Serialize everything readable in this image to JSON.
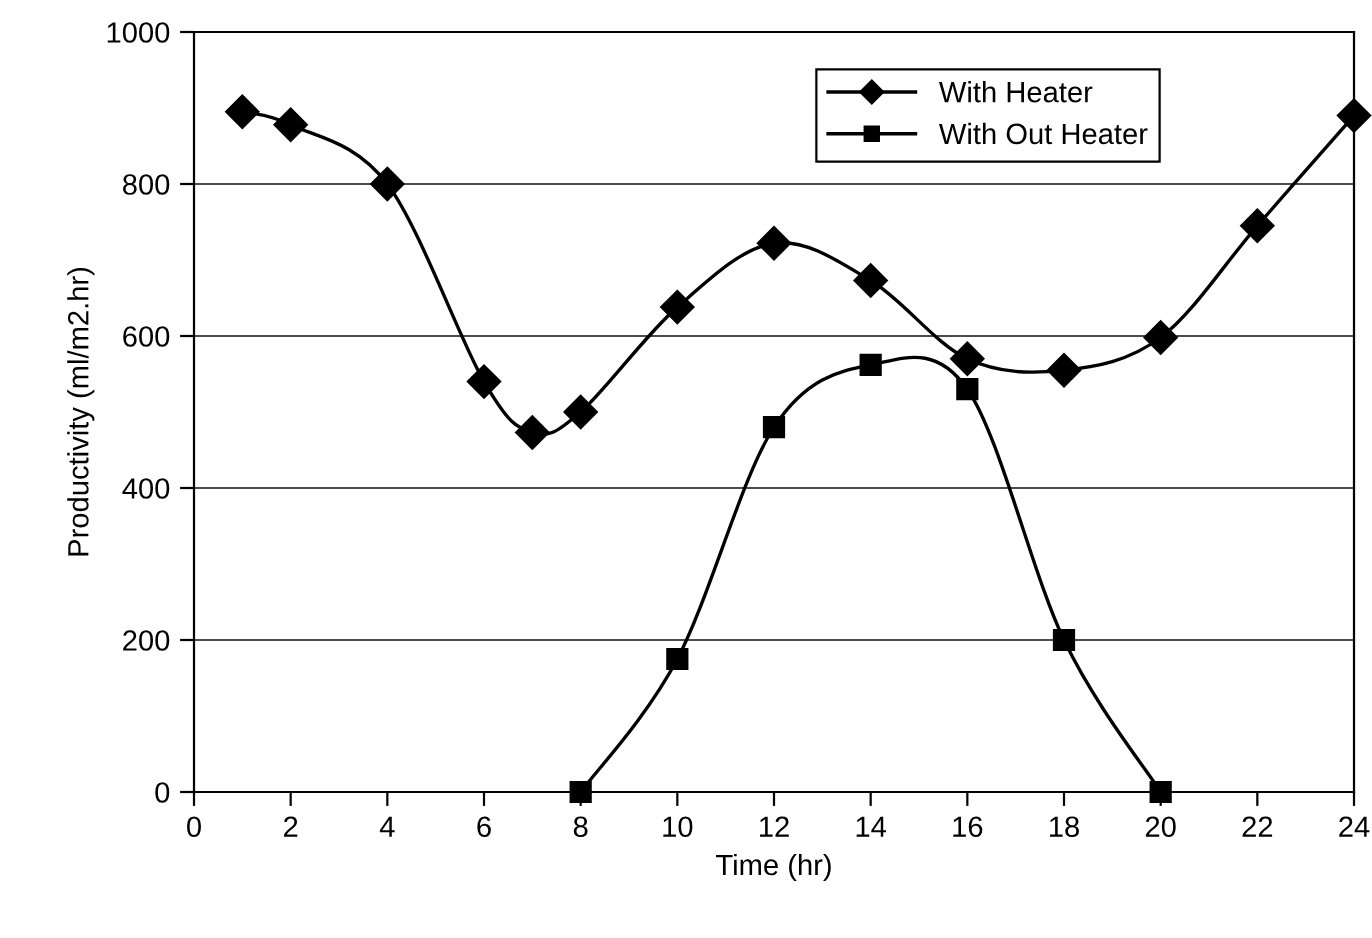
{
  "chart_data": {
    "type": "line",
    "xlabel": "Time (hr)",
    "ylabel": "Productivity (ml/m2.hr)",
    "xlim": [
      0,
      24
    ],
    "xticks": [
      0,
      2,
      4,
      6,
      8,
      10,
      12,
      14,
      16,
      18,
      20,
      22,
      24
    ],
    "ylim": [
      0,
      1000
    ],
    "yticks": [
      0,
      200,
      400,
      600,
      800,
      1000
    ],
    "grid": "y",
    "legend": "top right",
    "line_style": "solid",
    "series": [
      {
        "name": "With Heater",
        "color": "#000000",
        "marker": "diamond",
        "x": [
          1,
          2,
          4,
          6,
          7,
          8,
          10,
          12,
          14,
          16,
          18,
          20,
          22,
          24
        ],
        "values": [
          895,
          878,
          800,
          540,
          473,
          500,
          638,
          722,
          673,
          570,
          555,
          598,
          745,
          890
        ]
      },
      {
        "name": "With Out Heater",
        "color": "#000000",
        "marker": "square",
        "x": [
          8,
          10,
          12,
          14,
          16,
          18,
          20
        ],
        "values": [
          0,
          175,
          480,
          562,
          530,
          200,
          0
        ]
      }
    ]
  }
}
